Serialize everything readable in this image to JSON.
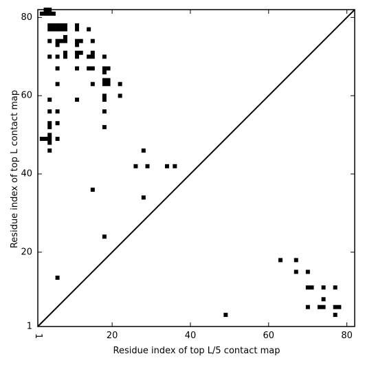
{
  "chart_data": {
    "type": "scatter",
    "xlabel": "Residue index of top L/5 contact map",
    "ylabel": "Residue index of top L contact map",
    "xlim": [
      1,
      82
    ],
    "ylim": [
      1,
      82
    ],
    "xticks": [
      1,
      20,
      40,
      60,
      80
    ],
    "yticks": [
      1,
      20,
      40,
      60,
      80
    ],
    "grid": false,
    "diagonal": true,
    "marker_color": "#000000",
    "upper_points": [
      [
        3,
        82
      ],
      [
        4,
        82
      ],
      [
        2,
        81
      ],
      [
        3,
        81
      ],
      [
        4,
        81
      ],
      [
        5,
        81
      ],
      [
        4,
        78
      ],
      [
        5,
        78
      ],
      [
        6,
        78
      ],
      [
        7,
        78
      ],
      [
        8,
        78
      ],
      [
        11,
        78
      ],
      [
        4,
        77
      ],
      [
        5,
        77
      ],
      [
        6,
        77
      ],
      [
        7,
        77
      ],
      [
        8,
        77
      ],
      [
        11,
        77
      ],
      [
        14,
        77
      ],
      [
        8,
        75
      ],
      [
        7,
        74
      ],
      [
        8,
        74
      ],
      [
        4,
        74
      ],
      [
        6,
        74
      ],
      [
        11,
        74
      ],
      [
        12,
        74
      ],
      [
        15,
        74
      ],
      [
        6,
        73
      ],
      [
        11,
        73
      ],
      [
        8,
        71
      ],
      [
        11,
        71
      ],
      [
        12,
        71
      ],
      [
        15,
        71
      ],
      [
        4,
        70
      ],
      [
        6,
        70
      ],
      [
        8,
        70
      ],
      [
        11,
        70
      ],
      [
        14,
        70
      ],
      [
        15,
        70
      ],
      [
        18,
        70
      ],
      [
        6,
        67
      ],
      [
        11,
        67
      ],
      [
        14,
        67
      ],
      [
        15,
        67
      ],
      [
        18,
        67
      ],
      [
        19,
        67
      ],
      [
        18,
        66
      ],
      [
        18,
        64
      ],
      [
        19,
        64
      ],
      [
        18,
        63
      ],
      [
        19,
        63
      ],
      [
        6,
        63
      ],
      [
        15,
        63
      ],
      [
        22,
        63
      ],
      [
        22,
        60
      ],
      [
        18,
        60
      ],
      [
        18,
        59
      ],
      [
        4,
        59
      ],
      [
        11,
        59
      ],
      [
        4,
        56
      ],
      [
        6,
        56
      ],
      [
        18,
        56
      ],
      [
        4,
        53
      ],
      [
        6,
        53
      ],
      [
        4,
        52
      ],
      [
        18,
        52
      ],
      [
        4,
        50
      ],
      [
        2,
        49
      ],
      [
        3,
        49
      ],
      [
        4,
        49
      ],
      [
        6,
        49
      ],
      [
        4,
        48
      ],
      [
        4,
        46
      ],
      [
        28,
        46
      ],
      [
        26,
        42
      ],
      [
        29,
        42
      ],
      [
        34,
        42
      ],
      [
        36,
        42
      ],
      [
        15,
        36
      ],
      [
        28,
        34
      ],
      [
        18,
        24
      ],
      [
        6,
        13.5
      ]
    ],
    "lower_points": [
      [
        63,
        18
      ],
      [
        67,
        18
      ],
      [
        67,
        15
      ],
      [
        70,
        15
      ],
      [
        70,
        11
      ],
      [
        71,
        11
      ],
      [
        74,
        11
      ],
      [
        77,
        11
      ],
      [
        74,
        8
      ],
      [
        70,
        6
      ],
      [
        73,
        6
      ],
      [
        74,
        6
      ],
      [
        77,
        6
      ],
      [
        78,
        6
      ],
      [
        49,
        4
      ],
      [
        77,
        4
      ]
    ]
  }
}
